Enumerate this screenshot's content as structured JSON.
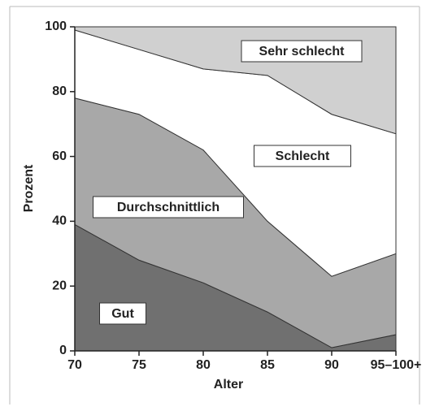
{
  "chart_data": {
    "type": "area",
    "stacked": true,
    "x_label": "Alter",
    "y_label": "Prozent",
    "categories": [
      "70",
      "75",
      "80",
      "85",
      "90",
      "95–100+"
    ],
    "series": [
      {
        "name": "Gut",
        "color": "#707070",
        "values": [
          39,
          28,
          21,
          12,
          1,
          5
        ]
      },
      {
        "name": "Durchschnittlich",
        "color": "#a8a8a8",
        "values": [
          39,
          45,
          41,
          28,
          22,
          25
        ]
      },
      {
        "name": "Schlecht",
        "color": "#ffffff",
        "values": [
          21,
          20,
          25,
          45,
          50,
          37
        ]
      },
      {
        "name": "Sehr schlecht",
        "color": "#d0d0d0",
        "values": [
          1,
          7,
          13,
          15,
          27,
          33
        ]
      }
    ],
    "ylim": [
      0,
      100
    ],
    "yticks": [
      0,
      20,
      40,
      60,
      80,
      100
    ]
  }
}
